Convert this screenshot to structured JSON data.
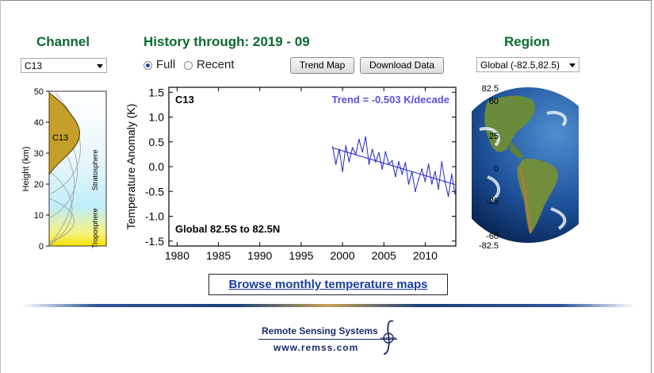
{
  "headings": {
    "channel": "Channel",
    "history": "History through: 2019 - 09",
    "region": "Region"
  },
  "channel_select": {
    "value": "C13"
  },
  "region_select": {
    "value": "Global (-82.5,82.5)"
  },
  "period": {
    "full_label": "Full",
    "recent_label": "Recent",
    "selected": "Full"
  },
  "buttons": {
    "trend_map": "Trend Map",
    "download_data": "Download Data",
    "browse_maps": "Browse monthly temperature maps"
  },
  "profile": {
    "ylabel": "Height  (km)",
    "yticks": [
      "0",
      "10",
      "20",
      "30",
      "40",
      "50"
    ],
    "channel_label": "C13",
    "stratosphere_label": "Stratosphere",
    "troposphere_label": "Troposphere"
  },
  "globe": {
    "lat_ticks": [
      "82.5",
      "60",
      "25",
      "0",
      "-25",
      "-60",
      "-82.5"
    ]
  },
  "footer": {
    "logo_title": "Remote Sensing Systems",
    "logo_url": "www.remss.com"
  },
  "chart_data": {
    "type": "line",
    "ylabel": "Temperature Anomaly (K)",
    "xticks": [
      1980,
      1985,
      1990,
      1995,
      2000,
      2005,
      2010
    ],
    "yticks": [
      -1.5,
      -1.0,
      -0.5,
      0.0,
      0.5,
      1.0,
      1.5
    ],
    "xlim": [
      1979,
      2013.7
    ],
    "ylim": [
      -1.6,
      1.6
    ],
    "channel_label": "C13",
    "trend_label": "Trend = -0.503 K/decade",
    "region_label": "Global  82.5S to  82.5N",
    "series_color": "#2222cc",
    "trend_line": {
      "x": [
        1998.8,
        2013.6
      ],
      "y": [
        0.38,
        -0.36
      ]
    },
    "series": [
      {
        "x": [
          1998.8,
          1999.2,
          1999.6,
          2000.0,
          2000.4,
          2000.8,
          2001.2,
          2001.6,
          2002.0,
          2002.4,
          2002.8,
          2003.2,
          2003.6,
          2004.0,
          2004.4,
          2004.8,
          2005.2,
          2005.6,
          2006.0,
          2006.4,
          2006.8,
          2007.2,
          2007.6,
          2008.0,
          2008.4,
          2008.8,
          2009.2,
          2009.6,
          2010.0,
          2010.4,
          2010.8,
          2011.2,
          2011.6,
          2012.0,
          2012.4,
          2012.8,
          2013.2,
          2013.6
        ],
        "y": [
          0.4,
          0.05,
          0.35,
          -0.1,
          0.42,
          0.1,
          0.38,
          0.25,
          0.55,
          0.3,
          0.6,
          0.05,
          0.35,
          0.1,
          0.28,
          -0.05,
          0.3,
          0.05,
          0.12,
          -0.2,
          0.1,
          -0.15,
          0.08,
          -0.35,
          -0.1,
          -0.5,
          -0.25,
          -0.05,
          -0.3,
          0.05,
          -0.35,
          -0.1,
          -0.45,
          0.1,
          -0.3,
          -0.6,
          -0.15,
          -0.55
        ]
      }
    ]
  }
}
